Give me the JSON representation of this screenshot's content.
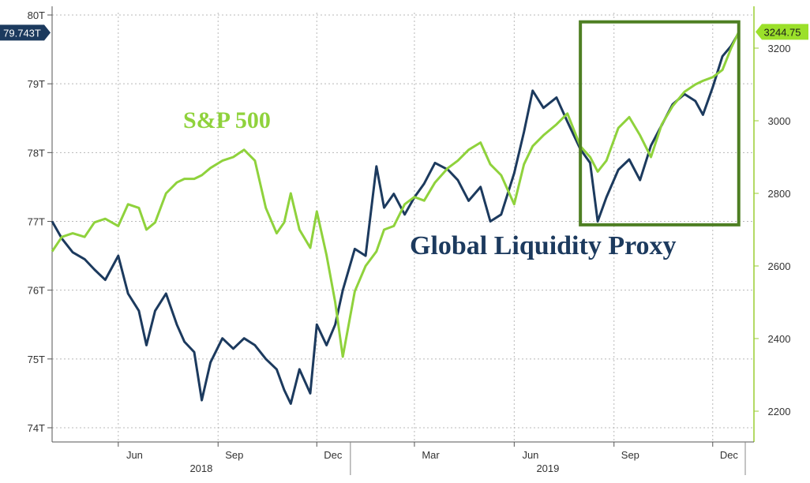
{
  "colors": {
    "sp500": "#8fd23c",
    "liquidity": "#1c3a5e",
    "highlight_box": "#4e7f23",
    "grid": "#b8b8b8",
    "right_axis": "#9acd32",
    "left_tag_bg": "#1c3a5e",
    "right_tag_bg": "#9be02a"
  },
  "chart_data": {
    "type": "line",
    "title": "",
    "grid": true,
    "left_axis": {
      "label": "",
      "ticks": [
        "80T",
        "79T",
        "78T",
        "77T",
        "76T",
        "75T",
        "74T"
      ],
      "tick_values": [
        80,
        79,
        78,
        77,
        76,
        75,
        74
      ],
      "range": [
        74,
        80
      ],
      "last_value_tag": "79.743T"
    },
    "right_axis": {
      "label": "",
      "ticks": [
        "3200",
        "3000",
        "2800",
        "2600",
        "2400",
        "2200"
      ],
      "tick_values": [
        3200,
        3000,
        2800,
        2600,
        2400,
        2200
      ],
      "range": [
        2170,
        3290
      ],
      "last_value_tag": "3244.75"
    },
    "x_axis": {
      "range": [
        "2018-04-01",
        "2019-12-31"
      ],
      "month_ticks": [
        {
          "label": "Jun",
          "date": "2018-06-01"
        },
        {
          "label": "Sep",
          "date": "2018-09-01"
        },
        {
          "label": "Dec",
          "date": "2018-12-01"
        },
        {
          "label": "Mar",
          "date": "2019-03-01"
        },
        {
          "label": "Jun",
          "date": "2019-06-01"
        },
        {
          "label": "Sep",
          "date": "2019-09-01"
        },
        {
          "label": "Dec",
          "date": "2019-12-01"
        }
      ],
      "year_ticks": [
        {
          "label": "2018",
          "date": "2018-04-01"
        },
        {
          "label": "2019",
          "date": "2019-01-01"
        }
      ]
    },
    "annotations": {
      "sp500_label": "S&P 500",
      "liquidity_label": "Global Liquidity Proxy"
    },
    "highlight_box": {
      "x_range": [
        "2019-08-01",
        "2019-12-25"
      ],
      "liquidity_range": [
        76.95,
        79.9
      ]
    },
    "series": [
      {
        "id": "liquidity",
        "axis": "left",
        "points": [
          [
            "2018-04-01",
            77.0
          ],
          [
            "2018-04-10",
            76.75
          ],
          [
            "2018-04-20",
            76.55
          ],
          [
            "2018-05-01",
            76.45
          ],
          [
            "2018-05-10",
            76.3
          ],
          [
            "2018-05-20",
            76.15
          ],
          [
            "2018-06-01",
            76.5
          ],
          [
            "2018-06-10",
            75.95
          ],
          [
            "2018-06-20",
            75.7
          ],
          [
            "2018-06-27",
            75.2
          ],
          [
            "2018-07-05",
            75.7
          ],
          [
            "2018-07-15",
            75.95
          ],
          [
            "2018-07-25",
            75.5
          ],
          [
            "2018-08-01",
            75.25
          ],
          [
            "2018-08-10",
            75.1
          ],
          [
            "2018-08-17",
            74.4
          ],
          [
            "2018-08-25",
            74.95
          ],
          [
            "2018-09-05",
            75.3
          ],
          [
            "2018-09-15",
            75.15
          ],
          [
            "2018-09-25",
            75.3
          ],
          [
            "2018-10-05",
            75.2
          ],
          [
            "2018-10-15",
            75.0
          ],
          [
            "2018-10-25",
            74.85
          ],
          [
            "2018-11-01",
            74.55
          ],
          [
            "2018-11-07",
            74.35
          ],
          [
            "2018-11-15",
            74.85
          ],
          [
            "2018-11-25",
            74.5
          ],
          [
            "2018-12-01",
            75.5
          ],
          [
            "2018-12-10",
            75.2
          ],
          [
            "2018-12-18",
            75.5
          ],
          [
            "2018-12-25",
            76.0
          ],
          [
            "2019-01-05",
            76.6
          ],
          [
            "2019-01-15",
            76.5
          ],
          [
            "2019-01-25",
            77.8
          ],
          [
            "2019-02-01",
            77.2
          ],
          [
            "2019-02-10",
            77.4
          ],
          [
            "2019-02-20",
            77.1
          ],
          [
            "2019-03-01",
            77.35
          ],
          [
            "2019-03-10",
            77.55
          ],
          [
            "2019-03-20",
            77.85
          ],
          [
            "2019-04-01",
            77.75
          ],
          [
            "2019-04-10",
            77.6
          ],
          [
            "2019-04-20",
            77.3
          ],
          [
            "2019-05-01",
            77.5
          ],
          [
            "2019-05-10",
            77.0
          ],
          [
            "2019-05-20",
            77.1
          ],
          [
            "2019-06-01",
            77.7
          ],
          [
            "2019-06-10",
            78.3
          ],
          [
            "2019-06-18",
            78.9
          ],
          [
            "2019-06-28",
            78.65
          ],
          [
            "2019-07-10",
            78.8
          ],
          [
            "2019-07-20",
            78.45
          ],
          [
            "2019-08-01",
            78.05
          ],
          [
            "2019-08-10",
            77.85
          ],
          [
            "2019-08-17",
            77.0
          ],
          [
            "2019-08-25",
            77.35
          ],
          [
            "2019-09-05",
            77.75
          ],
          [
            "2019-09-15",
            77.9
          ],
          [
            "2019-09-25",
            77.6
          ],
          [
            "2019-10-05",
            78.1
          ],
          [
            "2019-10-15",
            78.4
          ],
          [
            "2019-10-25",
            78.7
          ],
          [
            "2019-11-05",
            78.85
          ],
          [
            "2019-11-15",
            78.75
          ],
          [
            "2019-11-22",
            78.55
          ],
          [
            "2019-12-01",
            78.95
          ],
          [
            "2019-12-10",
            79.4
          ],
          [
            "2019-12-18",
            79.55
          ],
          [
            "2019-12-25",
            79.743
          ]
        ]
      },
      {
        "id": "sp500",
        "axis": "right",
        "points": [
          [
            "2018-04-01",
            2640
          ],
          [
            "2018-04-10",
            2680
          ],
          [
            "2018-04-20",
            2690
          ],
          [
            "2018-05-01",
            2680
          ],
          [
            "2018-05-10",
            2720
          ],
          [
            "2018-05-20",
            2730
          ],
          [
            "2018-06-01",
            2710
          ],
          [
            "2018-06-10",
            2770
          ],
          [
            "2018-06-20",
            2760
          ],
          [
            "2018-06-27",
            2700
          ],
          [
            "2018-07-05",
            2720
          ],
          [
            "2018-07-15",
            2800
          ],
          [
            "2018-07-25",
            2830
          ],
          [
            "2018-08-01",
            2840
          ],
          [
            "2018-08-10",
            2840
          ],
          [
            "2018-08-17",
            2850
          ],
          [
            "2018-08-25",
            2870
          ],
          [
            "2018-09-05",
            2890
          ],
          [
            "2018-09-15",
            2900
          ],
          [
            "2018-09-25",
            2920
          ],
          [
            "2018-10-05",
            2890
          ],
          [
            "2018-10-15",
            2760
          ],
          [
            "2018-10-25",
            2690
          ],
          [
            "2018-11-01",
            2720
          ],
          [
            "2018-11-07",
            2800
          ],
          [
            "2018-11-15",
            2700
          ],
          [
            "2018-11-25",
            2650
          ],
          [
            "2018-12-01",
            2750
          ],
          [
            "2018-12-10",
            2630
          ],
          [
            "2018-12-18",
            2500
          ],
          [
            "2018-12-25",
            2350
          ],
          [
            "2019-01-05",
            2530
          ],
          [
            "2019-01-15",
            2600
          ],
          [
            "2019-01-25",
            2640
          ],
          [
            "2019-02-01",
            2700
          ],
          [
            "2019-02-10",
            2710
          ],
          [
            "2019-02-20",
            2770
          ],
          [
            "2019-03-01",
            2790
          ],
          [
            "2019-03-10",
            2780
          ],
          [
            "2019-03-20",
            2830
          ],
          [
            "2019-04-01",
            2870
          ],
          [
            "2019-04-10",
            2890
          ],
          [
            "2019-04-20",
            2920
          ],
          [
            "2019-05-01",
            2940
          ],
          [
            "2019-05-10",
            2880
          ],
          [
            "2019-05-20",
            2850
          ],
          [
            "2019-06-01",
            2770
          ],
          [
            "2019-06-10",
            2880
          ],
          [
            "2019-06-18",
            2930
          ],
          [
            "2019-06-28",
            2960
          ],
          [
            "2019-07-10",
            2990
          ],
          [
            "2019-07-20",
            3020
          ],
          [
            "2019-08-01",
            2930
          ],
          [
            "2019-08-10",
            2900
          ],
          [
            "2019-08-17",
            2860
          ],
          [
            "2019-08-25",
            2890
          ],
          [
            "2019-09-05",
            2980
          ],
          [
            "2019-09-15",
            3010
          ],
          [
            "2019-09-25",
            2960
          ],
          [
            "2019-10-05",
            2900
          ],
          [
            "2019-10-15",
            2990
          ],
          [
            "2019-10-25",
            3040
          ],
          [
            "2019-11-05",
            3080
          ],
          [
            "2019-11-15",
            3100
          ],
          [
            "2019-11-22",
            3110
          ],
          [
            "2019-12-01",
            3120
          ],
          [
            "2019-12-10",
            3140
          ],
          [
            "2019-12-18",
            3200
          ],
          [
            "2019-12-25",
            3244.75
          ]
        ]
      }
    ]
  }
}
